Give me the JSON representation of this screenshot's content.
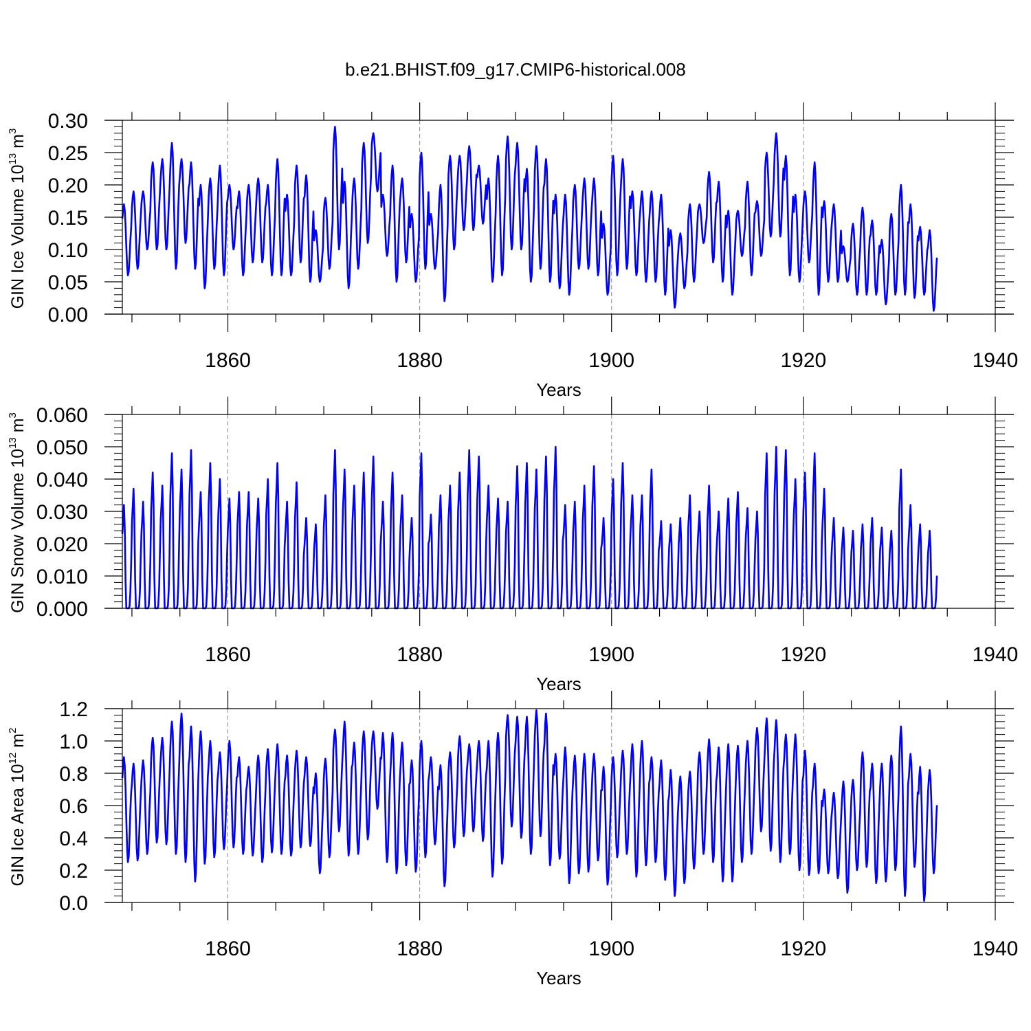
{
  "chart_data": {
    "title": "b.e21.BHIST.f09_g17.CMIP6-historical.008",
    "panels": [
      {
        "type": "line",
        "ylabel": "GIN Ice Volume 10",
        "ylabel_exp": "13",
        "ylabel_unit": "m",
        "ylabel_unit_exp": "3",
        "xlabel": "Years",
        "xlim": [
          1849,
          1940
        ],
        "ylim": [
          0,
          0.3
        ],
        "yticks": [
          "0.00",
          "0.05",
          "0.10",
          "0.15",
          "0.20",
          "0.25",
          "0.30"
        ],
        "ytick_values": [
          0,
          0.05,
          0.1,
          0.15,
          0.2,
          0.25,
          0.3
        ],
        "xticks": [
          "1860",
          "1880",
          "1900",
          "1920",
          "1940"
        ],
        "xtick_values": [
          1860,
          1880,
          1900,
          1920,
          1940
        ],
        "color": "#0000ff",
        "series": {
          "name": "GIN Ice Volume",
          "annual_max": [
            0.17,
            0.19,
            0.19,
            0.235,
            0.24,
            0.265,
            0.24,
            0.235,
            0.2,
            0.21,
            0.23,
            0.2,
            0.19,
            0.2,
            0.21,
            0.2,
            0.24,
            0.185,
            0.23,
            0.215,
            0.13,
            0.18,
            0.29,
            0.205,
            0.21,
            0.265,
            0.28,
            0.185,
            0.23,
            0.21,
            0.155,
            0.25,
            0.155,
            0.2,
            0.245,
            0.245,
            0.26,
            0.23,
            0.21,
            0.245,
            0.275,
            0.265,
            0.225,
            0.26,
            0.24,
            0.185,
            0.185,
            0.2,
            0.21,
            0.21,
            0.14,
            0.245,
            0.24,
            0.19,
            0.19,
            0.19,
            0.185,
            0.13,
            0.125,
            0.17,
            0.17,
            0.22,
            0.205,
            0.16,
            0.16,
            0.205,
            0.175,
            0.25,
            0.28,
            0.245,
            0.185,
            0.19,
            0.235,
            0.175,
            0.17,
            0.105,
            0.14,
            0.165,
            0.145,
            0.115,
            0.155,
            0.2,
            0.17,
            0.135,
            0.13
          ],
          "annual_min": [
            0.06,
            0.07,
            0.1,
            0.1,
            0.1,
            0.07,
            0.11,
            0.07,
            0.04,
            0.07,
            0.06,
            0.1,
            0.06,
            0.08,
            0.08,
            0.06,
            0.06,
            0.06,
            0.08,
            0.05,
            0.05,
            0.07,
            0.1,
            0.04,
            0.07,
            0.11,
            0.19,
            0.09,
            0.05,
            0.08,
            0.05,
            0.07,
            0.07,
            0.02,
            0.1,
            0.13,
            0.13,
            0.14,
            0.05,
            0.06,
            0.1,
            0.1,
            0.05,
            0.07,
            0.05,
            0.04,
            0.03,
            0.07,
            0.07,
            0.06,
            0.03,
            0.06,
            0.07,
            0.06,
            0.05,
            0.05,
            0.03,
            0.01,
            0.04,
            0.05,
            0.11,
            0.08,
            0.05,
            0.03,
            0.09,
            0.06,
            0.09,
            0.12,
            0.12,
            0.06,
            0.05,
            0.08,
            0.03,
            0.05,
            0.05,
            0.05,
            0.03,
            0.03,
            0.03,
            0.015,
            0.03,
            0.03,
            0.025,
            0.03,
            0.005
          ]
        }
      },
      {
        "type": "line",
        "ylabel": "GIN Snow Volume 10",
        "ylabel_exp": "13",
        "ylabel_unit": "m",
        "ylabel_unit_exp": "3",
        "xlabel": "Years",
        "xlim": [
          1849,
          1940
        ],
        "ylim": [
          0,
          0.06
        ],
        "yticks": [
          "0.000",
          "0.010",
          "0.020",
          "0.030",
          "0.040",
          "0.050",
          "0.060"
        ],
        "ytick_values": [
          0,
          0.01,
          0.02,
          0.03,
          0.04,
          0.05,
          0.06
        ],
        "xticks": [
          "1860",
          "1880",
          "1900",
          "1920",
          "1940"
        ],
        "xtick_values": [
          1860,
          1880,
          1900,
          1920,
          1940
        ],
        "color": "#0000ff",
        "series": {
          "name": "GIN Snow Volume",
          "annual_max": [
            0.032,
            0.037,
            0.033,
            0.042,
            0.038,
            0.048,
            0.043,
            0.049,
            0.036,
            0.045,
            0.04,
            0.034,
            0.036,
            0.036,
            0.034,
            0.04,
            0.045,
            0.033,
            0.039,
            0.028,
            0.026,
            0.035,
            0.049,
            0.043,
            0.038,
            0.042,
            0.047,
            0.033,
            0.042,
            0.035,
            0.028,
            0.048,
            0.029,
            0.035,
            0.038,
            0.042,
            0.049,
            0.047,
            0.038,
            0.034,
            0.033,
            0.044,
            0.045,
            0.043,
            0.047,
            0.05,
            0.032,
            0.033,
            0.038,
            0.044,
            0.028,
            0.04,
            0.045,
            0.035,
            0.035,
            0.043,
            0.027,
            0.026,
            0.028,
            0.035,
            0.03,
            0.038,
            0.03,
            0.034,
            0.036,
            0.031,
            0.03,
            0.048,
            0.05,
            0.049,
            0.04,
            0.042,
            0.048,
            0.037,
            0.028,
            0.025,
            0.024,
            0.026,
            0.028,
            0.025,
            0.024,
            0.043,
            0.032,
            0.026,
            0.024
          ]
        }
      },
      {
        "type": "line",
        "ylabel": "GIN Ice Area 10",
        "ylabel_exp": "12",
        "ylabel_unit": "m",
        "ylabel_unit_exp": "2",
        "xlabel": "Years",
        "xlim": [
          1849,
          1940
        ],
        "ylim": [
          0,
          1.2
        ],
        "yticks": [
          "0.0",
          "0.2",
          "0.4",
          "0.6",
          "0.8",
          "1.0",
          "1.2"
        ],
        "ytick_values": [
          0,
          0.2,
          0.4,
          0.6,
          0.8,
          1.0,
          1.2
        ],
        "xticks": [
          "1860",
          "1880",
          "1900",
          "1920",
          "1940"
        ],
        "xtick_values": [
          1860,
          1880,
          1900,
          1920,
          1940
        ],
        "color": "#0000ff",
        "series": {
          "name": "GIN Ice Area",
          "annual_max": [
            0.9,
            0.86,
            0.88,
            1.02,
            1.02,
            1.12,
            1.17,
            1.09,
            1.06,
            1.0,
            0.93,
            1.0,
            0.9,
            0.84,
            0.91,
            0.95,
            0.98,
            0.91,
            0.94,
            0.9,
            0.8,
            0.89,
            1.07,
            1.12,
            0.99,
            1.06,
            1.06,
            1.05,
            1.05,
            0.99,
            0.88,
            1.0,
            0.9,
            0.85,
            0.93,
            1.03,
            0.98,
            1.0,
            1.0,
            1.05,
            1.16,
            1.15,
            1.15,
            1.19,
            1.17,
            0.92,
            0.96,
            0.91,
            0.92,
            0.92,
            0.84,
            0.9,
            0.94,
            0.98,
            1.0,
            0.9,
            0.88,
            0.82,
            0.78,
            0.81,
            0.93,
            1.01,
            0.96,
            0.98,
            0.97,
            1.0,
            1.08,
            1.14,
            1.13,
            1.04,
            1.04,
            0.94,
            0.86,
            0.7,
            0.68,
            0.75,
            0.76,
            0.93,
            0.86,
            0.86,
            0.91,
            1.09,
            0.92,
            0.84,
            0.82
          ],
          "annual_min": [
            0.25,
            0.26,
            0.3,
            0.37,
            0.36,
            0.3,
            0.25,
            0.13,
            0.24,
            0.28,
            0.33,
            0.34,
            0.3,
            0.29,
            0.25,
            0.31,
            0.3,
            0.29,
            0.34,
            0.35,
            0.18,
            0.28,
            0.44,
            0.29,
            0.3,
            0.39,
            0.58,
            0.25,
            0.18,
            0.23,
            0.19,
            0.28,
            0.36,
            0.1,
            0.34,
            0.41,
            0.44,
            0.38,
            0.16,
            0.24,
            0.47,
            0.4,
            0.3,
            0.41,
            0.23,
            0.27,
            0.12,
            0.18,
            0.19,
            0.26,
            0.11,
            0.28,
            0.3,
            0.16,
            0.23,
            0.25,
            0.14,
            0.04,
            0.12,
            0.21,
            0.3,
            0.25,
            0.13,
            0.13,
            0.25,
            0.3,
            0.44,
            0.32,
            0.25,
            0.3,
            0.2,
            0.17,
            0.18,
            0.18,
            0.15,
            0.06,
            0.2,
            0.22,
            0.12,
            0.13,
            0.2,
            0.04,
            0.22,
            0.01,
            0.18
          ]
        }
      }
    ]
  }
}
